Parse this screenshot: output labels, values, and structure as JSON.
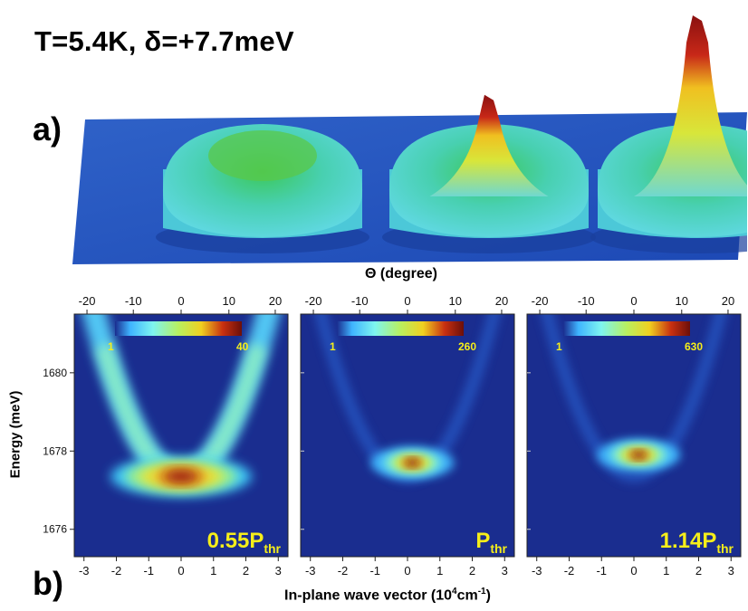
{
  "title": "T=5.4K, δ=+7.7meV",
  "panel_labels": {
    "a": "a)",
    "b": "b)"
  },
  "top_axis_label": "Θ (degree)",
  "y_axis_label": "Energy (meV)",
  "x_axis_label": {
    "main": "In-plane wave vector (10",
    "sup1": "4",
    "mid": "cm",
    "sup2": "-1",
    "end": ")"
  },
  "colors": {
    "map_background": "#1a2d8f",
    "colorscale": [
      "#1a2d8f",
      "#3fb4ff",
      "#7ef5d8",
      "#d8f23f",
      "#f0c020",
      "#c83010",
      "#6b0f0a"
    ],
    "power_label": "#f5ee1a"
  },
  "chart_data": [
    {
      "type": "heatmap",
      "panel": "b-left",
      "power_label": {
        "main": "0.55P",
        "sub": "thr"
      },
      "colorbar": {
        "min_label": "1",
        "max_label": "40",
        "min": 1,
        "max": 40
      },
      "x_ticks": [
        "-3",
        "-2",
        "-1",
        "0",
        "1",
        "2",
        "3"
      ],
      "top_ticks": [
        "-20",
        "-10",
        "0",
        "10",
        "20"
      ],
      "y_ticks": [
        "1676",
        "1678",
        "1680"
      ],
      "xlim": [
        -3.3,
        3.3
      ],
      "ylim": [
        1675.3,
        1681.5
      ],
      "dispersion": {
        "e0": 1677.35,
        "curvature": 0.58
      },
      "peak": {
        "k": 0.0,
        "energy": 1677.35
      }
    },
    {
      "type": "heatmap",
      "panel": "b-middle",
      "power_label": {
        "main": "P",
        "sub": "thr"
      },
      "colorbar": {
        "min_label": "1",
        "max_label": "260",
        "min": 1,
        "max": 260
      },
      "x_ticks": [
        "-3",
        "-2",
        "-1",
        "0",
        "1",
        "2",
        "3"
      ],
      "top_ticks": [
        "-20",
        "-10",
        "0",
        "10",
        "20"
      ],
      "y_ticks": [
        "1676",
        "1678",
        "1680"
      ],
      "xlim": [
        -3.3,
        3.3
      ],
      "ylim": [
        1675.3,
        1681.5
      ],
      "dispersion": {
        "e0": 1677.35,
        "curvature": 0.58
      },
      "peak": {
        "k": 0.15,
        "energy": 1677.7
      }
    },
    {
      "type": "heatmap",
      "panel": "b-right",
      "power_label": {
        "main": "1.14P",
        "sub": "thr"
      },
      "colorbar": {
        "min_label": "1",
        "max_label": "630",
        "min": 1,
        "max": 630
      },
      "x_ticks": [
        "-3",
        "-2",
        "-1",
        "0",
        "1",
        "2",
        "3"
      ],
      "top_ticks": [
        "-20",
        "-10",
        "0",
        "10",
        "20"
      ],
      "y_ticks": [
        "1676",
        "1678",
        "1680"
      ],
      "xlim": [
        -3.3,
        3.3
      ],
      "ylim": [
        1675.3,
        1681.5
      ],
      "dispersion": {
        "e0": 1677.35,
        "curvature": 0.58
      },
      "peak": {
        "k": 0.15,
        "energy": 1677.9
      }
    }
  ],
  "surfaces": [
    {
      "panel": "a-left",
      "peak_relative": 0.15
    },
    {
      "panel": "a-middle",
      "peak_relative": 0.55
    },
    {
      "panel": "a-right",
      "peak_relative": 1.0
    }
  ]
}
